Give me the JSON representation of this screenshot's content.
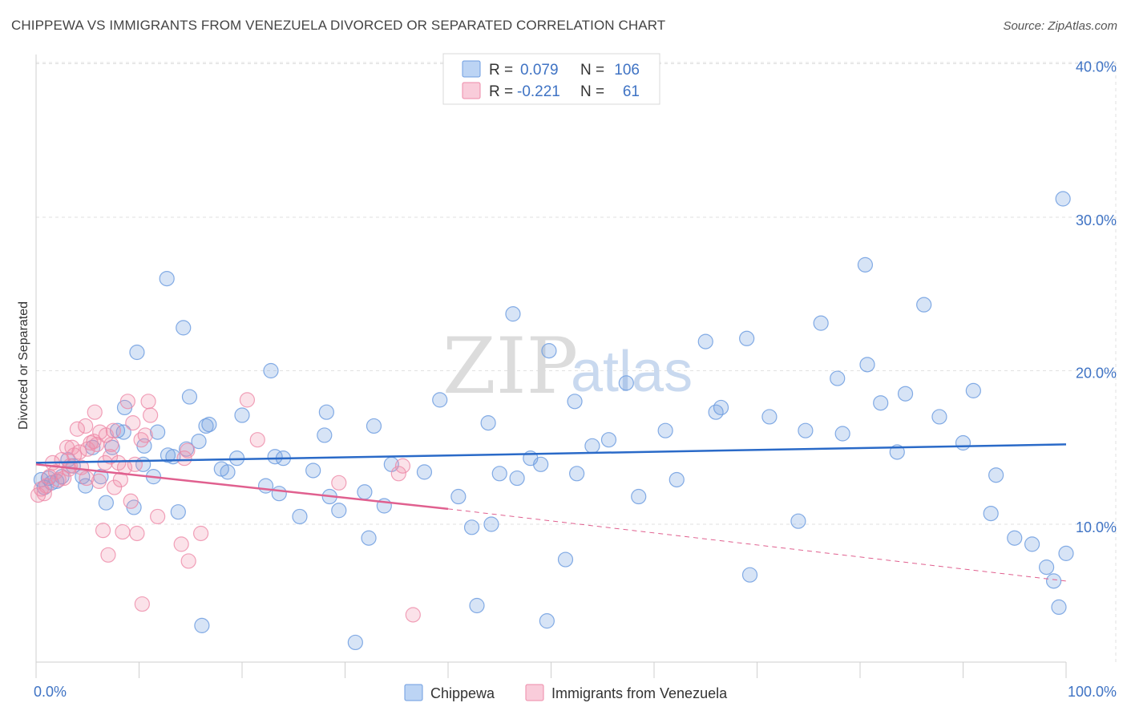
{
  "header": {
    "title": "CHIPPEWA VS IMMIGRANTS FROM VENEZUELA DIVORCED OR SEPARATED CORRELATION CHART",
    "source": "Source: ZipAtlas.com"
  },
  "watermark": {
    "zip": "ZIP",
    "atlas": "atlas"
  },
  "legend": {
    "rows": [
      {
        "r_label": "R =",
        "r_value": "0.079",
        "n_label": "N =",
        "n_value": "106",
        "color": "#a9c6f0"
      },
      {
        "r_label": "R =",
        "r_value": "-0.221",
        "n_label": "N =",
        "n_value": "61",
        "color": "#f5b8cb"
      }
    ]
  },
  "bottom_legend": [
    "Chippewa",
    "Immigrants from Venezuela"
  ],
  "chart_data": {
    "type": "scatter",
    "title": "CHIPPEWA VS IMMIGRANTS FROM VENEZUELA DIVORCED OR SEPARATED CORRELATION CHART",
    "xlabel": "",
    "ylabel": "Divorced or Separated",
    "xlim": [
      0,
      100
    ],
    "ylim": [
      1,
      42
    ],
    "x_tick_labels": [
      "0.0%",
      "100.0%"
    ],
    "y_ticks": [
      10,
      20,
      30,
      40
    ],
    "y_tick_labels": [
      "10.0%",
      "20.0%",
      "30.0%",
      "40.0%"
    ],
    "grid": true,
    "legend_position": "top-center",
    "colors": {
      "chippewa": "#6e9de0",
      "venezuela": "#ee8aa8",
      "chippewa_line": "#2a6ac8",
      "venezuela_line": "#e0608f"
    },
    "series": [
      {
        "name": "Chippewa",
        "r": 0.079,
        "n": 106,
        "trend": {
          "x": [
            0,
            100
          ],
          "y": [
            14.0,
            15.2
          ]
        },
        "points": [
          [
            0.5,
            12.9
          ],
          [
            0.8,
            12.4
          ],
          [
            1.2,
            13.0
          ],
          [
            1.5,
            12.7
          ],
          [
            2.0,
            12.8
          ],
          [
            2.5,
            13.1
          ],
          [
            3.1,
            14.2
          ],
          [
            3.6,
            13.8
          ],
          [
            4.5,
            13.1
          ],
          [
            4.8,
            12.5
          ],
          [
            5.5,
            15.0
          ],
          [
            6.3,
            13.1
          ],
          [
            6.8,
            11.4
          ],
          [
            7.4,
            15.0
          ],
          [
            7.9,
            16.1
          ],
          [
            8.5,
            16.0
          ],
          [
            8.6,
            17.6
          ],
          [
            9.5,
            11.1
          ],
          [
            9.8,
            21.2
          ],
          [
            10.4,
            13.9
          ],
          [
            10.5,
            15.1
          ],
          [
            11.4,
            13.1
          ],
          [
            11.8,
            16.0
          ],
          [
            12.7,
            26.0
          ],
          [
            12.8,
            14.5
          ],
          [
            13.3,
            14.4
          ],
          [
            13.8,
            10.8
          ],
          [
            14.3,
            22.8
          ],
          [
            14.6,
            14.9
          ],
          [
            14.9,
            18.3
          ],
          [
            15.8,
            15.4
          ],
          [
            16.1,
            3.4
          ],
          [
            16.5,
            16.4
          ],
          [
            16.8,
            16.5
          ],
          [
            18.0,
            13.6
          ],
          [
            18.6,
            13.4
          ],
          [
            19.5,
            14.3
          ],
          [
            20.0,
            17.1
          ],
          [
            22.3,
            12.5
          ],
          [
            22.8,
            20.0
          ],
          [
            23.2,
            14.4
          ],
          [
            23.6,
            12.0
          ],
          [
            24.0,
            14.3
          ],
          [
            25.6,
            10.5
          ],
          [
            26.9,
            13.5
          ],
          [
            28.0,
            15.8
          ],
          [
            28.2,
            17.3
          ],
          [
            28.5,
            11.8
          ],
          [
            29.4,
            10.9
          ],
          [
            31.0,
            2.3
          ],
          [
            31.9,
            12.1
          ],
          [
            32.3,
            9.1
          ],
          [
            32.8,
            16.4
          ],
          [
            33.8,
            11.2
          ],
          [
            34.5,
            13.9
          ],
          [
            37.7,
            13.4
          ],
          [
            39.2,
            18.1
          ],
          [
            41.0,
            11.8
          ],
          [
            42.3,
            9.8
          ],
          [
            42.8,
            4.7
          ],
          [
            43.9,
            16.6
          ],
          [
            44.2,
            10.0
          ],
          [
            45.0,
            13.3
          ],
          [
            46.3,
            23.7
          ],
          [
            46.7,
            13.0
          ],
          [
            48.0,
            14.3
          ],
          [
            49.0,
            13.9
          ],
          [
            49.6,
            3.7
          ],
          [
            49.8,
            21.3
          ],
          [
            51.4,
            7.7
          ],
          [
            52.3,
            18.0
          ],
          [
            52.5,
            13.3
          ],
          [
            54.0,
            15.1
          ],
          [
            55.6,
            15.5
          ],
          [
            57.3,
            19.2
          ],
          [
            58.5,
            11.8
          ],
          [
            61.1,
            16.1
          ],
          [
            62.2,
            12.9
          ],
          [
            65.0,
            21.9
          ],
          [
            66.0,
            17.3
          ],
          [
            66.5,
            17.6
          ],
          [
            69.0,
            22.1
          ],
          [
            69.3,
            6.7
          ],
          [
            71.2,
            17.0
          ],
          [
            74.0,
            10.2
          ],
          [
            74.7,
            16.1
          ],
          [
            76.2,
            23.1
          ],
          [
            77.8,
            19.5
          ],
          [
            78.3,
            15.9
          ],
          [
            80.5,
            26.9
          ],
          [
            80.7,
            20.4
          ],
          [
            82.0,
            17.9
          ],
          [
            83.6,
            14.7
          ],
          [
            84.4,
            18.5
          ],
          [
            86.2,
            24.3
          ],
          [
            87.7,
            17.0
          ],
          [
            90.0,
            15.3
          ],
          [
            91.0,
            18.7
          ],
          [
            92.7,
            10.7
          ],
          [
            93.2,
            13.2
          ],
          [
            95.0,
            9.1
          ],
          [
            96.7,
            8.7
          ],
          [
            98.1,
            7.2
          ],
          [
            98.8,
            6.3
          ],
          [
            99.7,
            31.2
          ],
          [
            99.3,
            4.6
          ],
          [
            100.0,
            8.1
          ]
        ]
      },
      {
        "name": "Immigrants from Venezuela",
        "r": -0.221,
        "n": 61,
        "trend": {
          "x": [
            0,
            40
          ],
          "y": [
            13.9,
            11.0
          ]
        },
        "trend_extension": {
          "x": [
            40,
            100
          ],
          "y": [
            11.0,
            6.3
          ]
        },
        "points": [
          [
            0.2,
            11.9
          ],
          [
            0.5,
            12.3
          ],
          [
            0.8,
            12.0
          ],
          [
            1.0,
            12.5
          ],
          [
            1.3,
            13.1
          ],
          [
            1.6,
            14.0
          ],
          [
            1.9,
            13.4
          ],
          [
            2.2,
            12.9
          ],
          [
            2.5,
            14.2
          ],
          [
            2.7,
            13.0
          ],
          [
            3.0,
            15.0
          ],
          [
            3.2,
            13.6
          ],
          [
            3.3,
            13.8
          ],
          [
            3.5,
            15.0
          ],
          [
            3.7,
            14.5
          ],
          [
            4.0,
            16.2
          ],
          [
            4.2,
            14.7
          ],
          [
            4.4,
            13.7
          ],
          [
            4.8,
            16.4
          ],
          [
            4.9,
            13.0
          ],
          [
            5.0,
            14.9
          ],
          [
            5.3,
            15.3
          ],
          [
            5.6,
            15.4
          ],
          [
            5.7,
            17.3
          ],
          [
            5.9,
            15.2
          ],
          [
            6.1,
            12.8
          ],
          [
            6.2,
            16.0
          ],
          [
            6.5,
            9.6
          ],
          [
            6.7,
            14.0
          ],
          [
            6.8,
            15.8
          ],
          [
            7.0,
            8.0
          ],
          [
            7.2,
            14.4
          ],
          [
            7.3,
            15.2
          ],
          [
            7.5,
            16.1
          ],
          [
            7.6,
            12.4
          ],
          [
            8.0,
            14.0
          ],
          [
            8.2,
            12.9
          ],
          [
            8.4,
            9.5
          ],
          [
            8.6,
            13.7
          ],
          [
            8.9,
            18.0
          ],
          [
            9.2,
            11.5
          ],
          [
            9.4,
            16.6
          ],
          [
            9.6,
            13.9
          ],
          [
            9.8,
            9.4
          ],
          [
            10.2,
            15.5
          ],
          [
            10.3,
            4.8
          ],
          [
            10.6,
            15.8
          ],
          [
            10.9,
            18.0
          ],
          [
            11.1,
            17.1
          ],
          [
            11.8,
            10.5
          ],
          [
            14.1,
            8.7
          ],
          [
            14.4,
            14.3
          ],
          [
            14.7,
            14.8
          ],
          [
            14.8,
            7.6
          ],
          [
            16.0,
            9.4
          ],
          [
            20.5,
            18.1
          ],
          [
            21.5,
            15.5
          ],
          [
            29.4,
            12.7
          ],
          [
            35.2,
            13.3
          ],
          [
            35.6,
            13.8
          ],
          [
            36.6,
            4.1
          ]
        ]
      }
    ]
  }
}
